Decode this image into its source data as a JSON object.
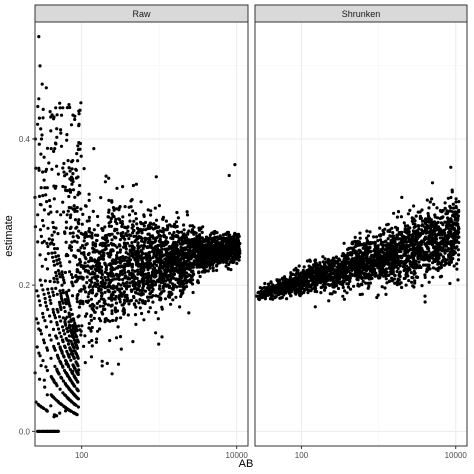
{
  "chart_data": {
    "type": "scatter",
    "xlabel": "AB",
    "ylabel": "estimate",
    "x_scale": "log10",
    "xlim": [
      25,
      14000
    ],
    "ylim": [
      -0.02,
      0.56
    ],
    "x_ticks": [
      100,
      10000
    ],
    "x_tick_labels": [
      "100",
      "10000"
    ],
    "y_ticks": [
      0.0,
      0.2,
      0.4
    ],
    "y_tick_labels": [
      "0.0",
      "0.2",
      "0.4"
    ],
    "grid": true,
    "point_color": "#000000",
    "panels": [
      {
        "strip_label": "Raw",
        "description_points": [
          [
            28,
            0.54
          ],
          [
            29,
            0.5
          ],
          [
            28,
            0.455
          ],
          [
            31,
            0.475
          ],
          [
            35,
            0.47
          ],
          [
            27,
            0.42
          ],
          [
            40,
            0.43
          ],
          [
            44,
            0.43
          ],
          [
            55,
            0.39
          ],
          [
            28,
            0.36
          ],
          [
            30,
            0.31
          ],
          [
            33,
            0.26
          ],
          [
            28,
            0.14
          ],
          [
            30,
            0.09
          ],
          [
            33,
            0.07
          ],
          [
            36,
            0.05
          ],
          [
            40,
            0.035
          ],
          [
            44,
            0.02
          ],
          [
            52,
            0.025
          ],
          [
            62,
            0.028
          ],
          [
            28,
            0.0
          ],
          [
            32,
            0.0
          ],
          [
            36,
            0.0
          ],
          [
            40,
            0.0
          ],
          [
            44,
            0.0
          ],
          [
            50,
            0.0
          ],
          [
            75,
            0.13
          ],
          [
            80,
            0.1
          ],
          [
            90,
            0.08
          ],
          [
            130,
            0.14
          ],
          [
            200,
            0.15
          ],
          [
            500,
            0.17
          ],
          [
            1500,
            0.18
          ],
          [
            5000,
            0.22
          ],
          [
            8000,
            0.35
          ],
          [
            9500,
            0.365
          ]
        ]
      },
      {
        "strip_label": "Shrunken",
        "description_points": [
          [
            26,
            0.185
          ],
          [
            35,
            0.19
          ],
          [
            60,
            0.2
          ],
          [
            100,
            0.21
          ],
          [
            200,
            0.22
          ],
          [
            500,
            0.235
          ],
          [
            1000,
            0.245
          ],
          [
            2000,
            0.26
          ],
          [
            5000,
            0.27
          ],
          [
            8000,
            0.29
          ],
          [
            2000,
            0.32
          ],
          [
            5000,
            0.34
          ],
          [
            9000,
            0.33
          ],
          [
            4000,
            0.185
          ],
          [
            10000,
            0.26
          ]
        ]
      }
    ]
  },
  "colors": {
    "panel_border": "#333333",
    "strip_fill": "#d9d9d9",
    "grid_major": "#ebebeb",
    "grid_minor": "#f5f5f5"
  }
}
